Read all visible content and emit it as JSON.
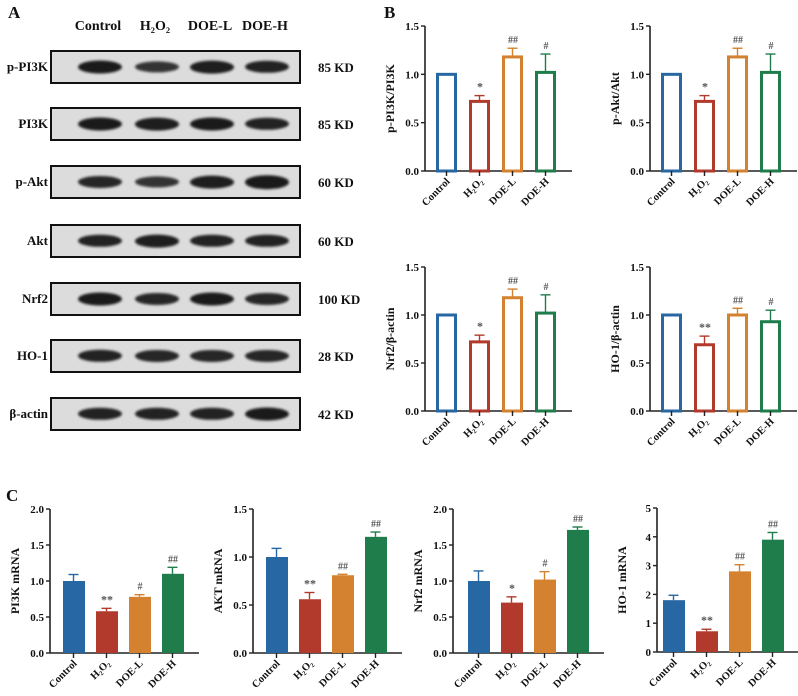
{
  "panels": {
    "a": "A",
    "b": "B",
    "c": "C"
  },
  "blot": {
    "lanes": [
      "Control",
      "H₂O₂",
      "DOE-L",
      "DOE-H"
    ],
    "rows": [
      {
        "protein": "p-PI3K",
        "kd": "85 KD",
        "intensity": [
          1.0,
          0.7,
          0.95,
          0.9
        ]
      },
      {
        "protein": "PI3K",
        "kd": "85 KD",
        "intensity": [
          1.0,
          0.95,
          1.0,
          0.9
        ]
      },
      {
        "protein": "p-Akt",
        "kd": "60 KD",
        "intensity": [
          0.85,
          0.7,
          0.95,
          1.1
        ]
      },
      {
        "protein": "Akt",
        "kd": "60 KD",
        "intensity": [
          0.9,
          0.95,
          0.9,
          0.9
        ]
      },
      {
        "protein": "Nrf2",
        "kd": "100 KD",
        "intensity": [
          1.0,
          0.85,
          1.0,
          0.85
        ]
      },
      {
        "protein": "HO-1",
        "kd": "28 KD",
        "intensity": [
          0.9,
          0.85,
          0.85,
          0.85
        ]
      },
      {
        "protein": "β-actin",
        "kd": "42 KD",
        "intensity": [
          0.9,
          0.9,
          0.9,
          1.0
        ]
      }
    ]
  },
  "colors": {
    "Control": "#2767a3",
    "H2O2": "#b23a2c",
    "DOE-L": "#d4822f",
    "DOE-H": "#1f7d4c"
  },
  "chart_data": [
    {
      "panel": "B",
      "type": "bar",
      "style": "outline",
      "ylabel": "p-PI3K/PI3K",
      "categories": [
        "Control",
        "H₂O₂",
        "DOE-L",
        "DOE-H"
      ],
      "values": [
        1.0,
        0.72,
        1.18,
        1.02
      ],
      "errors": [
        0,
        0.06,
        0.09,
        0.19
      ],
      "significance": [
        "",
        "*",
        "##",
        "#"
      ],
      "ylim": [
        0,
        1.5
      ],
      "yticks": [
        "0.0",
        "0.5",
        "1.0",
        "1.5"
      ]
    },
    {
      "panel": "B",
      "type": "bar",
      "style": "outline",
      "ylabel": "p-Akt/Akt",
      "categories": [
        "Control",
        "H₂O₂",
        "DOE-L",
        "DOE-H"
      ],
      "values": [
        1.0,
        0.72,
        1.18,
        1.02
      ],
      "errors": [
        0,
        0.06,
        0.09,
        0.19
      ],
      "significance": [
        "",
        "*",
        "##",
        "#"
      ],
      "ylim": [
        0,
        1.5
      ],
      "yticks": [
        "0.0",
        "0.5",
        "1.0",
        "1.5"
      ]
    },
    {
      "panel": "B",
      "type": "bar",
      "style": "outline",
      "ylabel": "Nrf2/β-actin",
      "categories": [
        "Control",
        "H₂O₂",
        "DOE-L",
        "DOE-H"
      ],
      "values": [
        1.0,
        0.72,
        1.18,
        1.02
      ],
      "errors": [
        0,
        0.07,
        0.09,
        0.19
      ],
      "significance": [
        "",
        "*",
        "##",
        "#"
      ],
      "ylim": [
        0,
        1.5
      ],
      "yticks": [
        "0.0",
        "0.5",
        "1.0",
        "1.5"
      ]
    },
    {
      "panel": "B",
      "type": "bar",
      "style": "outline",
      "ylabel": "HO-1/β-actin",
      "categories": [
        "Control",
        "H₂O₂",
        "DOE-L",
        "DOE-H"
      ],
      "values": [
        1.0,
        0.69,
        1.0,
        0.93
      ],
      "errors": [
        0,
        0.09,
        0.07,
        0.12
      ],
      "significance": [
        "",
        "**",
        "##",
        "#"
      ],
      "ylim": [
        0,
        1.5
      ],
      "yticks": [
        "0.0",
        "0.5",
        "1.0",
        "1.5"
      ]
    },
    {
      "panel": "C",
      "type": "bar",
      "style": "filled",
      "ylabel": "PI3K mRNA",
      "categories": [
        "Control",
        "H₂O₂",
        "DOE-L",
        "DOE-H"
      ],
      "values": [
        1.0,
        0.58,
        0.78,
        1.1
      ],
      "errors": [
        0.09,
        0.04,
        0.03,
        0.09
      ],
      "significance": [
        "",
        "**",
        "#",
        "##"
      ],
      "ylim": [
        0,
        2.0
      ],
      "yticks": [
        "0.0",
        "0.5",
        "1.0",
        "1.5",
        "2.0"
      ]
    },
    {
      "panel": "C",
      "type": "bar",
      "style": "filled",
      "ylabel": "AKT mRNA",
      "categories": [
        "Control",
        "H₂O₂",
        "DOE-L",
        "DOE-H"
      ],
      "values": [
        1.0,
        0.56,
        0.81,
        1.21
      ],
      "errors": [
        0.09,
        0.07,
        0.01,
        0.05
      ],
      "significance": [
        "",
        "**",
        "##",
        "##"
      ],
      "ylim": [
        0,
        1.5
      ],
      "yticks": [
        "0.0",
        "0.5",
        "1.0",
        "1.5"
      ]
    },
    {
      "panel": "C",
      "type": "bar",
      "style": "filled",
      "ylabel": "Nrf2 mRNA",
      "categories": [
        "Control",
        "H₂O₂",
        "DOE-L",
        "DOE-H"
      ],
      "values": [
        1.0,
        0.7,
        1.02,
        1.71
      ],
      "errors": [
        0.14,
        0.08,
        0.11,
        0.04
      ],
      "significance": [
        "",
        "*",
        "#",
        "##"
      ],
      "ylim": [
        0,
        2.0
      ],
      "yticks": [
        "0.0",
        "0.5",
        "1.0",
        "1.5",
        "2.0"
      ]
    },
    {
      "panel": "C",
      "type": "bar",
      "style": "filled",
      "ylabel": "HO-1 mRNA",
      "categories": [
        "Control",
        "H₂O₂",
        "DOE-L",
        "DOE-H"
      ],
      "values": [
        1.8,
        0.72,
        2.8,
        3.9
      ],
      "errors": [
        0.17,
        0.07,
        0.23,
        0.25
      ],
      "significance": [
        "",
        "**",
        "##",
        "##"
      ],
      "ylim": [
        0,
        5
      ],
      "yticks": [
        "0",
        "1",
        "2",
        "3",
        "4",
        "5"
      ]
    }
  ]
}
